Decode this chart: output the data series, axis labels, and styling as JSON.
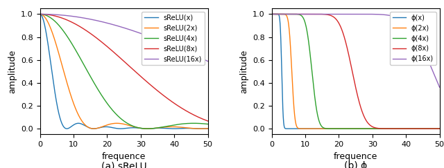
{
  "title_a": "(a) sReLU",
  "title_b": "(b) ϕ",
  "xlabel": "frequence",
  "ylabel": "amplitude",
  "xlim": [
    0,
    50
  ],
  "ylim": [
    -0.05,
    1.05
  ],
  "legend_a": [
    "sReLU(x)",
    "sReLU(2x)",
    "sReLU(4x)",
    "sReLU(8x)",
    "sReLU(16x)"
  ],
  "legend_b": [
    "ϕ(x)",
    "ϕ(2x)",
    "ϕ(4x)",
    "ϕ(8x)",
    "ϕ(16x)"
  ],
  "scales": [
    1,
    2,
    4,
    8,
    16
  ],
  "colors": [
    "#1f77b4",
    "#ff7f0e",
    "#2ca02c",
    "#d62728",
    "#9467bd"
  ],
  "n_points": 2000,
  "freq_max": 50,
  "srelu_base_cutoff": 8.0,
  "phi_base_cutoff": 3.0,
  "phi_steepness": 6.0
}
